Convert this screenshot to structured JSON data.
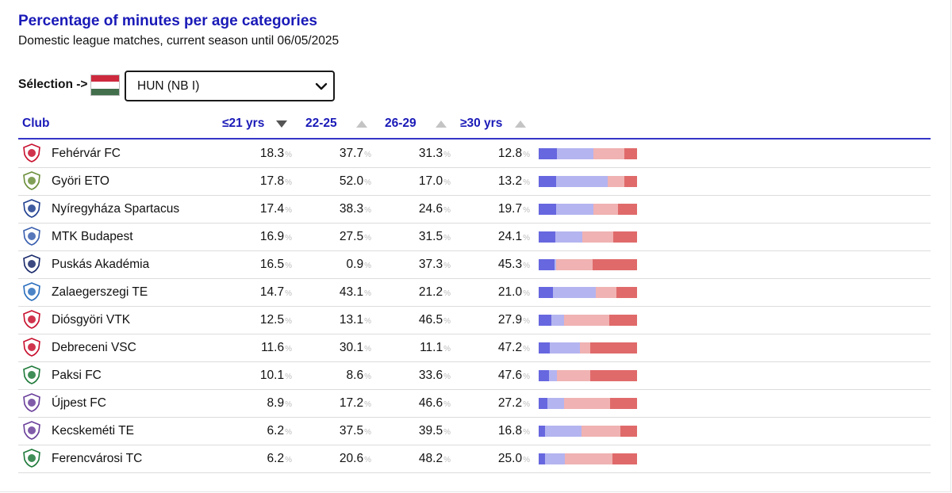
{
  "header": {
    "title": "Percentage of minutes per age categories",
    "subtitle": "Domestic league matches, current season until 06/05/2025"
  },
  "selection": {
    "label": "Sélection ->",
    "flag_icon": "hungary-flag-icon",
    "value": "HUN (NB I)"
  },
  "columns": {
    "club": "Club",
    "u21": "≤21 yrs",
    "a22_25": "22-25",
    "a26_29": "26-29",
    "o30": "≥30 yrs"
  },
  "sort": {
    "column": "u21",
    "direction": "descending"
  },
  "percent_sign": "%",
  "colors": {
    "title": "#1a1ab8",
    "u21": "#6767e0",
    "a22_25": "#b4b4f0",
    "a26_29": "#f0b2b2",
    "o30": "#e06a6a"
  },
  "rows": [
    {
      "club": "Fehérvár FC",
      "logo": "fehervar-crest-icon",
      "u21": "18.3",
      "a22_25": "37.7",
      "a26_29": "31.3",
      "o30": "12.8"
    },
    {
      "club": "Györi ETO",
      "logo": "gyori-eto-crest-icon",
      "u21": "17.8",
      "a22_25": "52.0",
      "a26_29": "17.0",
      "o30": "13.2"
    },
    {
      "club": "Nyíregyháza Spartacus",
      "logo": "nyiregyhaza-crest-icon",
      "u21": "17.4",
      "a22_25": "38.3",
      "a26_29": "24.6",
      "o30": "19.7"
    },
    {
      "club": "MTK Budapest",
      "logo": "mtk-crest-icon",
      "u21": "16.9",
      "a22_25": "27.5",
      "a26_29": "31.5",
      "o30": "24.1"
    },
    {
      "club": "Puskás Akadémia",
      "logo": "puskas-crest-icon",
      "u21": "16.5",
      "a22_25": "0.9",
      "a26_29": "37.3",
      "o30": "45.3"
    },
    {
      "club": "Zalaegerszegi TE",
      "logo": "zalaegerszegi-crest-icon",
      "u21": "14.7",
      "a22_25": "43.1",
      "a26_29": "21.2",
      "o30": "21.0"
    },
    {
      "club": "Diósgyöri VTK",
      "logo": "diosgyori-crest-icon",
      "u21": "12.5",
      "a22_25": "13.1",
      "a26_29": "46.5",
      "o30": "27.9"
    },
    {
      "club": "Debreceni VSC",
      "logo": "debreceni-crest-icon",
      "u21": "11.6",
      "a22_25": "30.1",
      "a26_29": "11.1",
      "o30": "47.2"
    },
    {
      "club": "Paksi FC",
      "logo": "paksi-crest-icon",
      "u21": "10.1",
      "a22_25": "8.6",
      "a26_29": "33.6",
      "o30": "47.6"
    },
    {
      "club": "Újpest FC",
      "logo": "ujpest-crest-icon",
      "u21": "8.9",
      "a22_25": "17.2",
      "a26_29": "46.6",
      "o30": "27.2"
    },
    {
      "club": "Kecskeméti TE",
      "logo": "kecskemeti-crest-icon",
      "u21": "6.2",
      "a22_25": "37.5",
      "a26_29": "39.5",
      "o30": "16.8"
    },
    {
      "club": "Ferencvárosi TC",
      "logo": "ferencvarosi-crest-icon",
      "u21": "6.2",
      "a22_25": "20.6",
      "a26_29": "48.2",
      "o30": "25.0"
    }
  ]
}
